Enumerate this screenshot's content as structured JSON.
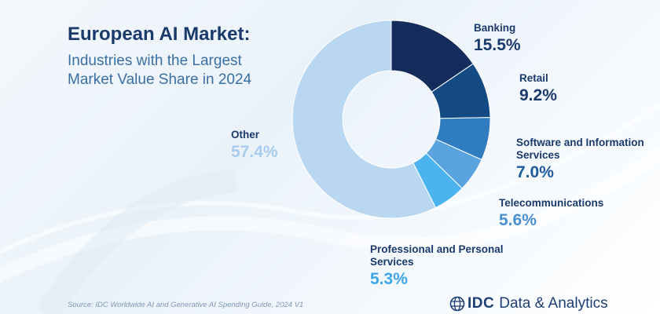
{
  "header": {
    "title": "European AI Market:",
    "subtitle": "Industries with the Largest Market Value Share in 2024"
  },
  "chart_data": {
    "type": "pie",
    "donut": true,
    "categories": [
      "Banking",
      "Retail",
      "Software and Information Services",
      "Telecommunications",
      "Professional and Personal Services",
      "Other"
    ],
    "values": [
      15.5,
      9.2,
      7.0,
      5.6,
      5.3,
      57.4
    ],
    "value_labels": [
      "15.5%",
      "9.2%",
      "7.0%",
      "5.6%",
      "5.3%",
      "57.4%"
    ],
    "colors": [
      "#152d5c",
      "#134a84",
      "#2f7cc1",
      "#5aa3de",
      "#4bb4ee",
      "#b9d7f1"
    ]
  },
  "footer": {
    "source": "Source: IDC Worldwide AI and Generative AI Spending Guide, 2024 V1",
    "brand_name": "IDC",
    "brand_tagline": "Data & Analytics"
  },
  "theme": {
    "title_color": "#1a3a6b",
    "subtitle_color": "#3a6fa3",
    "other_label_color": "#a9cbec"
  }
}
